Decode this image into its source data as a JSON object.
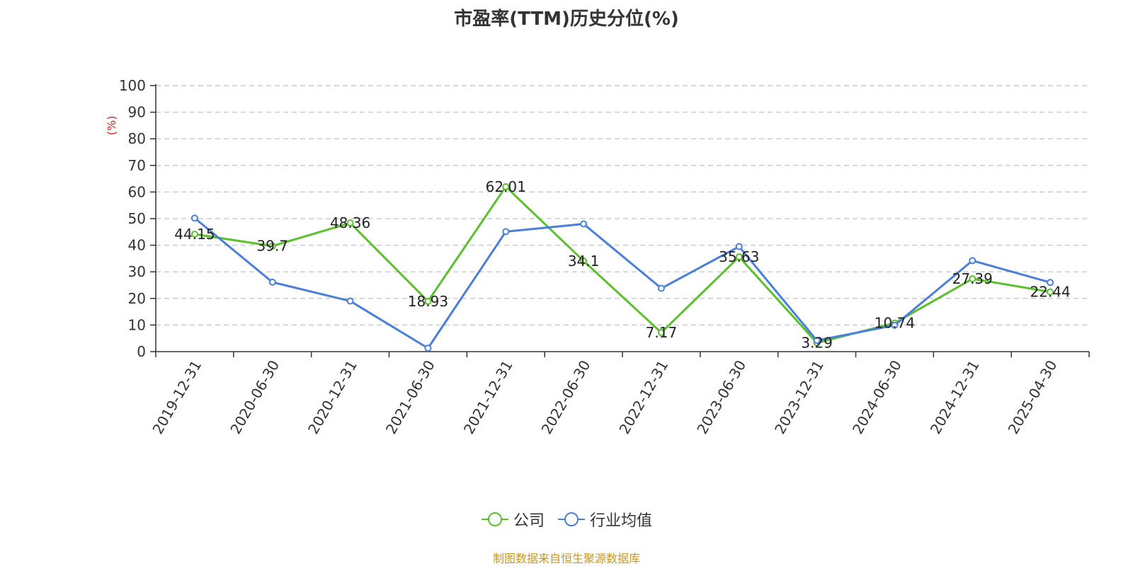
{
  "chart_data": {
    "type": "line",
    "title": "市盈率(TTM)历史分位(%)",
    "ylabel": "(%)",
    "xlabel": "",
    "ylim": [
      0,
      100
    ],
    "yticks": [
      0,
      10,
      20,
      30,
      40,
      50,
      60,
      70,
      80,
      90,
      100
    ],
    "grid": true,
    "legend_position": "bottom-center",
    "categories": [
      "2019-12-31",
      "2020-06-30",
      "2020-12-31",
      "2021-06-30",
      "2021-12-31",
      "2022-06-30",
      "2022-12-31",
      "2023-06-30",
      "2023-12-31",
      "2024-06-30",
      "2024-12-31",
      "2025-04-30"
    ],
    "series": [
      {
        "name": "公司",
        "color": "#5ac12c",
        "values": [
          44.15,
          39.7,
          48.36,
          18.93,
          62.01,
          34.1,
          7.17,
          35.63,
          3.29,
          10.74,
          27.39,
          22.44
        ],
        "labels": [
          "44.15",
          "39.7",
          "48.36",
          "18.93",
          "62.01",
          "34.1",
          "7.17",
          "35.63",
          "3.29",
          "10.74",
          "27.39",
          "22.44"
        ]
      },
      {
        "name": "行业均值",
        "color": "#4a7fdc",
        "values": [
          50.2,
          26.1,
          19.0,
          1.3,
          45.1,
          48.0,
          23.8,
          39.5,
          4.2,
          9.9,
          34.2,
          26.0
        ]
      }
    ]
  },
  "colors": {
    "unit_label": "#e02020",
    "source_text": "#c8961e",
    "grid": "#cccccc",
    "axis": "#333333"
  },
  "source": "制图数据来自恒生聚源数据库"
}
